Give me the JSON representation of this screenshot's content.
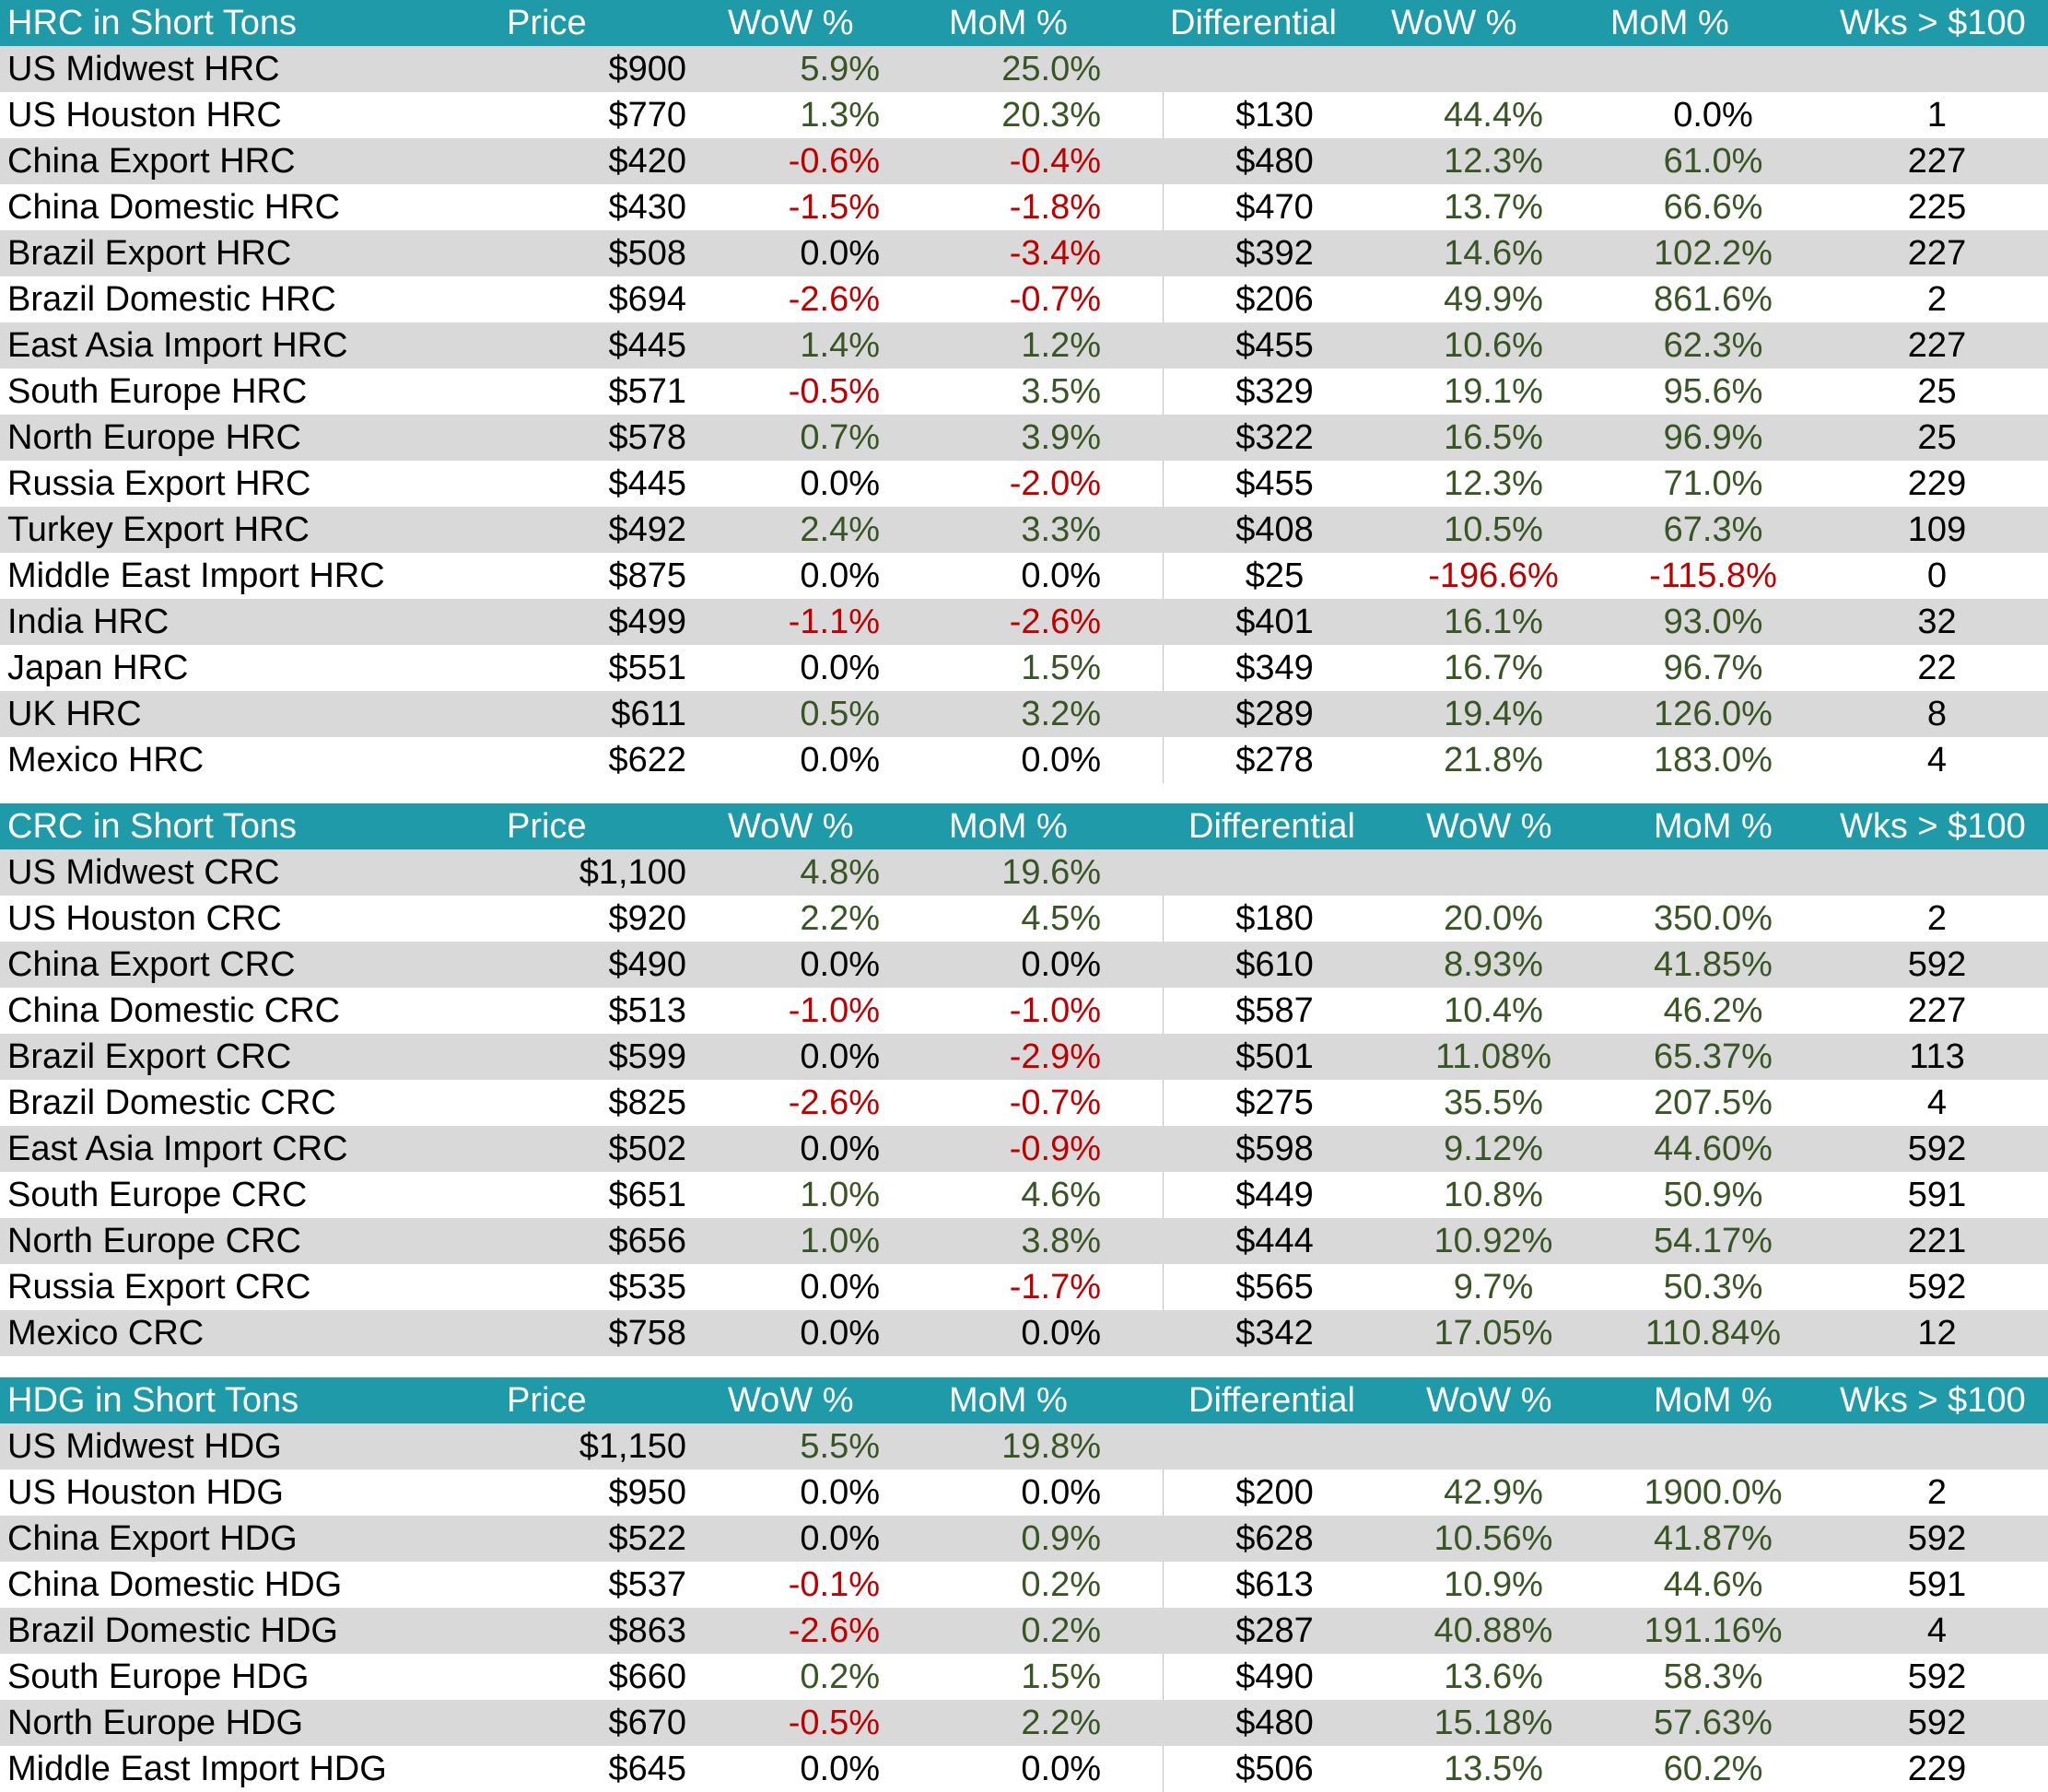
{
  "colors": {
    "header_bg": "#1f9aa8",
    "alt_row_bg": "#d9d9d9",
    "positive": "#375623",
    "negative": "#c00000"
  },
  "sections": [
    {
      "headers": {
        "name": "HRC in Short Tons",
        "price": "Price",
        "wow": "WoW %",
        "mom": "MoM %",
        "diff": "Differential",
        "wow2": "WoW %",
        "mom2": "MoM %",
        "wks": "Wks > $100"
      },
      "rows": [
        {
          "name": "US Midwest HRC",
          "price": "$900",
          "wow": "5.9%",
          "mom": "25.0%",
          "diff": "",
          "wow2": "",
          "mom2": "",
          "wks": ""
        },
        {
          "name": "US Houston HRC",
          "price": "$770",
          "wow": "1.3%",
          "mom": "20.3%",
          "diff": "$130",
          "wow2": "44.4%",
          "mom2": "0.0%",
          "wks": "1"
        },
        {
          "name": "China Export HRC",
          "price": "$420",
          "wow": "-0.6%",
          "mom": "-0.4%",
          "diff": "$480",
          "wow2": "12.3%",
          "mom2": "61.0%",
          "wks": "227"
        },
        {
          "name": "China Domestic HRC",
          "price": "$430",
          "wow": "-1.5%",
          "mom": "-1.8%",
          "diff": "$470",
          "wow2": "13.7%",
          "mom2": "66.6%",
          "wks": "225"
        },
        {
          "name": "Brazil Export HRC",
          "price": "$508",
          "wow": "0.0%",
          "mom": "-3.4%",
          "diff": "$392",
          "wow2": "14.6%",
          "mom2": "102.2%",
          "wks": "227"
        },
        {
          "name": "Brazil Domestic HRC",
          "price": "$694",
          "wow": "-2.6%",
          "mom": "-0.7%",
          "diff": "$206",
          "wow2": "49.9%",
          "mom2": "861.6%",
          "wks": "2"
        },
        {
          "name": "East Asia Import HRC",
          "price": "$445",
          "wow": "1.4%",
          "mom": "1.2%",
          "diff": "$455",
          "wow2": "10.6%",
          "mom2": "62.3%",
          "wks": "227"
        },
        {
          "name": "South Europe HRC",
          "price": "$571",
          "wow": "-0.5%",
          "mom": "3.5%",
          "diff": "$329",
          "wow2": "19.1%",
          "mom2": "95.6%",
          "wks": "25"
        },
        {
          "name": "North Europe HRC",
          "price": "$578",
          "wow": "0.7%",
          "mom": "3.9%",
          "diff": "$322",
          "wow2": "16.5%",
          "mom2": "96.9%",
          "wks": "25"
        },
        {
          "name": "Russia Export HRC",
          "price": "$445",
          "wow": "0.0%",
          "mom": "-2.0%",
          "diff": "$455",
          "wow2": "12.3%",
          "mom2": "71.0%",
          "wks": "229"
        },
        {
          "name": "Turkey Export HRC",
          "price": "$492",
          "wow": "2.4%",
          "mom": "3.3%",
          "diff": "$408",
          "wow2": "10.5%",
          "mom2": "67.3%",
          "wks": "109"
        },
        {
          "name": "Middle East Import HRC",
          "price": "$875",
          "wow": "0.0%",
          "mom": "0.0%",
          "diff": "$25",
          "wow2": "-196.6%",
          "mom2": "-115.8%",
          "wks": "0"
        },
        {
          "name": "India HRC",
          "price": "$499",
          "wow": "-1.1%",
          "mom": "-2.6%",
          "diff": "$401",
          "wow2": "16.1%",
          "mom2": "93.0%",
          "wks": "32"
        },
        {
          "name": "Japan HRC",
          "price": "$551",
          "wow": "0.0%",
          "mom": "1.5%",
          "diff": "$349",
          "wow2": "16.7%",
          "mom2": "96.7%",
          "wks": "22"
        },
        {
          "name": "UK HRC",
          "price": "$611",
          "wow": "0.5%",
          "mom": "3.2%",
          "diff": "$289",
          "wow2": "19.4%",
          "mom2": "126.0%",
          "wks": "8"
        },
        {
          "name": "Mexico HRC",
          "price": "$622",
          "wow": "0.0%",
          "mom": "0.0%",
          "diff": "$278",
          "wow2": "21.8%",
          "mom2": "183.0%",
          "wks": "4"
        }
      ]
    },
    {
      "headers": {
        "name": "CRC in Short Tons",
        "price": "Price",
        "wow": "WoW %",
        "mom": "MoM %",
        "diff": "Differential",
        "wow2": "WoW %",
        "mom2": "MoM %",
        "wks": "Wks > $100"
      },
      "rows": [
        {
          "name": "US Midwest CRC",
          "price": "$1,100",
          "wow": "4.8%",
          "mom": "19.6%",
          "diff": "",
          "wow2": "",
          "mom2": "",
          "wks": ""
        },
        {
          "name": "US Houston CRC",
          "price": "$920",
          "wow": "2.2%",
          "mom": "4.5%",
          "diff": "$180",
          "wow2": "20.0%",
          "mom2": "350.0%",
          "wks": "2"
        },
        {
          "name": "China Export CRC",
          "price": "$490",
          "wow": "0.0%",
          "mom": "0.0%",
          "diff": "$610",
          "wow2": "8.93%",
          "mom2": "41.85%",
          "wks": "592"
        },
        {
          "name": "China Domestic CRC",
          "price": "$513",
          "wow": "-1.0%",
          "mom": "-1.0%",
          "diff": "$587",
          "wow2": "10.4%",
          "mom2": "46.2%",
          "wks": "227"
        },
        {
          "name": "Brazil Export CRC",
          "price": "$599",
          "wow": "0.0%",
          "mom": "-2.9%",
          "diff": "$501",
          "wow2": "11.08%",
          "mom2": "65.37%",
          "wks": "113"
        },
        {
          "name": "Brazil Domestic CRC",
          "price": "$825",
          "wow": "-2.6%",
          "mom": "-0.7%",
          "diff": "$275",
          "wow2": "35.5%",
          "mom2": "207.5%",
          "wks": "4"
        },
        {
          "name": "East Asia Import CRC",
          "price": "$502",
          "wow": "0.0%",
          "mom": "-0.9%",
          "diff": "$598",
          "wow2": "9.12%",
          "mom2": "44.60%",
          "wks": "592"
        },
        {
          "name": "South Europe CRC",
          "price": "$651",
          "wow": "1.0%",
          "mom": "4.6%",
          "diff": "$449",
          "wow2": "10.8%",
          "mom2": "50.9%",
          "wks": "591"
        },
        {
          "name": "North Europe CRC",
          "price": "$656",
          "wow": "1.0%",
          "mom": "3.8%",
          "diff": "$444",
          "wow2": "10.92%",
          "mom2": "54.17%",
          "wks": "221"
        },
        {
          "name": "Russia Export CRC",
          "price": "$535",
          "wow": "0.0%",
          "mom": "-1.7%",
          "diff": "$565",
          "wow2": "9.7%",
          "mom2": "50.3%",
          "wks": "592"
        },
        {
          "name": "Mexico CRC",
          "price": "$758",
          "wow": "0.0%",
          "mom": "0.0%",
          "diff": "$342",
          "wow2": "17.05%",
          "mom2": "110.84%",
          "wks": "12"
        }
      ]
    },
    {
      "headers": {
        "name": "HDG in Short Tons",
        "price": "Price",
        "wow": "WoW %",
        "mom": "MoM %",
        "diff": "Differential",
        "wow2": "WoW %",
        "mom2": "MoM %",
        "wks": "Wks > $100"
      },
      "rows": [
        {
          "name": "US Midwest HDG",
          "price": "$1,150",
          "wow": "5.5%",
          "mom": "19.8%",
          "diff": "",
          "wow2": "",
          "mom2": "",
          "wks": ""
        },
        {
          "name": "US Houston HDG",
          "price": "$950",
          "wow": "0.0%",
          "mom": "0.0%",
          "diff": "$200",
          "wow2": "42.9%",
          "mom2": "1900.0%",
          "wks": "2"
        },
        {
          "name": "China Export HDG",
          "price": "$522",
          "wow": "0.0%",
          "mom": "0.9%",
          "diff": "$628",
          "wow2": "10.56%",
          "mom2": "41.87%",
          "wks": "592"
        },
        {
          "name": "China Domestic HDG",
          "price": "$537",
          "wow": "-0.1%",
          "mom": "0.2%",
          "diff": "$613",
          "wow2": "10.9%",
          "mom2": "44.6%",
          "wks": "591"
        },
        {
          "name": "Brazil Domestic HDG",
          "price": "$863",
          "wow": "-2.6%",
          "mom": "0.2%",
          "diff": "$287",
          "wow2": "40.88%",
          "mom2": "191.16%",
          "wks": "4"
        },
        {
          "name": "South Europe HDG",
          "price": "$660",
          "wow": "0.2%",
          "mom": "1.5%",
          "diff": "$490",
          "wow2": "13.6%",
          "mom2": "58.3%",
          "wks": "592"
        },
        {
          "name": "North Europe HDG",
          "price": "$670",
          "wow": "-0.5%",
          "mom": "2.2%",
          "diff": "$480",
          "wow2": "15.18%",
          "mom2": "57.63%",
          "wks": "592"
        },
        {
          "name": "Middle East Import HDG",
          "price": "$645",
          "wow": "0.0%",
          "mom": "0.0%",
          "diff": "$506",
          "wow2": "13.5%",
          "mom2": "60.2%",
          "wks": "229"
        }
      ]
    }
  ]
}
